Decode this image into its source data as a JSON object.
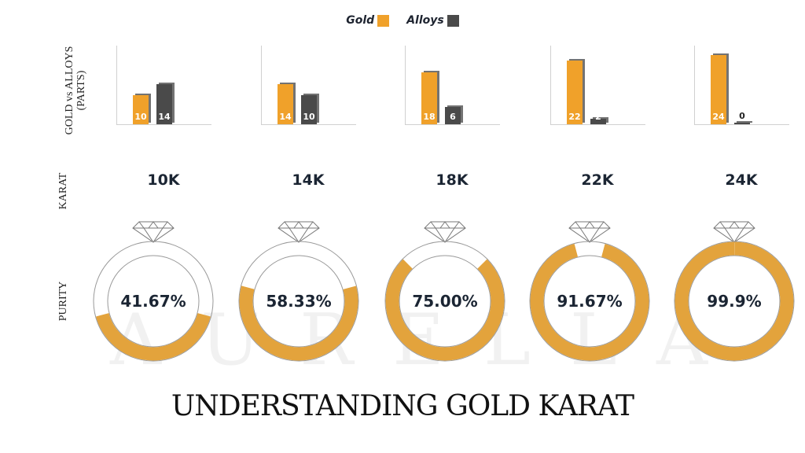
{
  "legend": [
    {
      "label": "Gold",
      "color": "#f0a12a"
    },
    {
      "label": "Alloys",
      "color": "#4a4a4a"
    }
  ],
  "row_labels": {
    "parts": "GOLD vs ALLOYS",
    "parts_sub": "(PARTS)",
    "karat": "KARAT",
    "purity": "PURITY"
  },
  "watermark": [
    "A",
    "U",
    "R",
    "E",
    "L",
    "L",
    "A"
  ],
  "title": "UNDERSTANDING GOLD KARAT",
  "items": [
    {
      "karat": "10K",
      "gold": 10,
      "alloys": 14,
      "gold_label": "10",
      "alloys_label": "14",
      "purity": "41.67%",
      "fraction": 0.4167
    },
    {
      "karat": "14K",
      "gold": 14,
      "alloys": 10,
      "gold_label": "14",
      "alloys_label": "10",
      "purity": "58.33%",
      "fraction": 0.5833
    },
    {
      "karat": "18K",
      "gold": 18,
      "alloys": 6,
      "gold_label": "18",
      "alloys_label": "6",
      "purity": "75.00%",
      "fraction": 0.75
    },
    {
      "karat": "22K",
      "gold": 22,
      "alloys": 2,
      "gold_label": "22",
      "alloys_label": "2",
      "purity": "91.67%",
      "fraction": 0.9167
    },
    {
      "karat": "24K",
      "gold": 24,
      "alloys": 0,
      "gold_label": "24",
      "alloys_label": "0",
      "purity": "99.9%",
      "fraction": 0.999
    }
  ],
  "chart_data": [
    {
      "type": "bar",
      "title": "Gold vs Alloys (Parts)",
      "categories": [
        "10K",
        "14K",
        "18K",
        "22K",
        "24K"
      ],
      "series": [
        {
          "name": "Gold",
          "values": [
            10,
            14,
            18,
            22,
            24
          ]
        },
        {
          "name": "Alloys",
          "values": [
            14,
            10,
            6,
            2,
            0
          ]
        }
      ],
      "ylabel": "GOLD vs ALLOYS (PARTS)",
      "ylim": [
        0,
        24
      ],
      "grid": false,
      "legend_position": "top"
    },
    {
      "type": "pie",
      "title": "Purity",
      "categories": [
        "10K",
        "14K",
        "18K",
        "22K",
        "24K"
      ],
      "values": [
        41.67,
        58.33,
        75.0,
        91.67,
        99.9
      ],
      "ylabel": "PURITY"
    }
  ]
}
